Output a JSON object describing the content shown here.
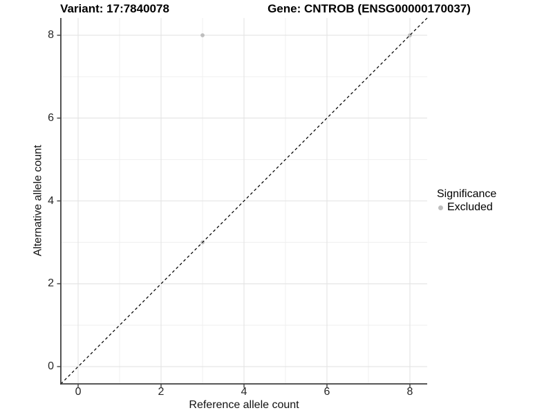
{
  "titles": {
    "variant": "Variant: 17:7840078",
    "gene": "Gene: CNTROB (ENSG00000170037)"
  },
  "axes": {
    "x": {
      "label": "Reference allele count"
    },
    "y": {
      "label": "Alternative allele count"
    }
  },
  "legend": {
    "title": "Significance",
    "items": [
      {
        "label": "Excluded",
        "color": "#bebebe"
      }
    ]
  },
  "colors": {
    "background": "#ffffff",
    "grid_major": "#e3e3e3",
    "grid_minor": "#efefef",
    "axis_line": "#3f3f3f",
    "tick_mark": "#3f3f3f",
    "tick_text": "#262626",
    "title_text": "#000000",
    "identity_line": "#000000",
    "point_excluded": "#bebebe"
  },
  "chart_data": {
    "type": "scatter",
    "title": "Variant: 17:7840078    Gene: CNTROB (ENSG00000170037)",
    "xlabel": "Reference allele count",
    "ylabel": "Alternative allele count",
    "xlim": [
      -0.417,
      8.417
    ],
    "ylim": [
      -0.417,
      8.417
    ],
    "x_ticks": [
      0,
      2,
      4,
      6,
      8
    ],
    "y_ticks": [
      0,
      2,
      4,
      6,
      8
    ],
    "minor_grid": [
      1,
      3,
      5,
      7
    ],
    "grid": true,
    "legend_position": "right",
    "legend_title": "Significance",
    "series": [
      {
        "name": "Excluded",
        "color": "#bebebe",
        "points": [
          [
            3,
            3
          ],
          [
            3,
            8
          ],
          [
            8,
            8
          ]
        ]
      }
    ],
    "reference_line": {
      "type": "identity y=x",
      "style": "dashed",
      "color": "#000000"
    }
  }
}
